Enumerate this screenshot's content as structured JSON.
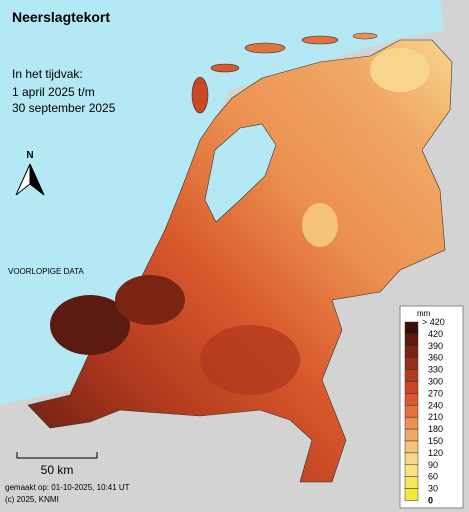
{
  "header": {
    "title": "Neerslagtekort",
    "period": [
      "In het tijdvak:",
      "1 april 2025 t/m",
      "30 september 2025"
    ]
  },
  "north_arrow": "N",
  "notice": "VOORLOPIGE DATA",
  "scale_bar": "50 km",
  "footer": [
    "gemaakt op: 01-10-2025, 10:41 UT",
    "(c) 2025, KNMI"
  ],
  "legend": {
    "unit": "mm",
    "top_label": "> 420",
    "ticks": [
      420,
      390,
      360,
      330,
      300,
      270,
      240,
      210,
      180,
      150,
      120,
      90,
      60,
      30,
      0
    ],
    "colors": [
      "#3b0d08",
      "#5c1a10",
      "#7a2414",
      "#98301a",
      "#b33a1e",
      "#c94724",
      "#d9592c",
      "#e3733c",
      "#eb9050",
      "#f0a865",
      "#f5c27c",
      "#f8d58c",
      "#f9e27f",
      "#f7e65e",
      "#f4e93a"
    ]
  }
}
